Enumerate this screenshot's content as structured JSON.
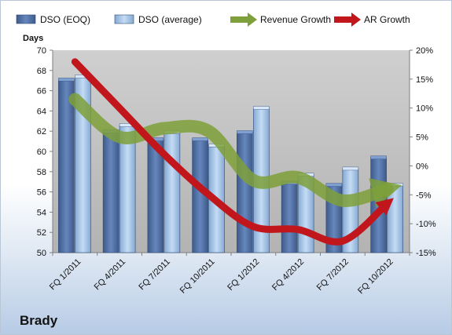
{
  "company_label": "Brady",
  "chart_data": {
    "type": "bar",
    "title": "",
    "ylabel": "Days",
    "ylim": [
      50,
      70
    ],
    "y_ticks": [
      50,
      52,
      54,
      56,
      58,
      60,
      62,
      64,
      66,
      68,
      70
    ],
    "y2lim": [
      -15,
      20
    ],
    "y2_ticks": [
      "-15%",
      "-10%",
      "-5%",
      "0%",
      "5%",
      "10%",
      "15%",
      "20%"
    ],
    "y2_tick_values": [
      -15,
      -10,
      -5,
      0,
      5,
      10,
      15,
      20
    ],
    "categories": [
      "FQ 1/2011",
      "FQ 4/2011",
      "FQ 7/2011",
      "FQ 10/2011",
      "FQ 1/2012",
      "FQ 4/2012",
      "FQ 7/2012",
      "FQ 10/2012"
    ],
    "series": [
      {
        "name": "DSO (EOQ)",
        "type": "bar",
        "axis": "left",
        "color": "#4f6fa3",
        "values": [
          67.1,
          62.0,
          61.2,
          61.2,
          61.9,
          56.9,
          56.7,
          59.4
        ]
      },
      {
        "name": "DSO (average)",
        "type": "bar",
        "axis": "left",
        "color": "#a9c7e8",
        "values": [
          67.4,
          62.6,
          61.9,
          60.6,
          64.3,
          57.7,
          58.3,
          56.7
        ]
      },
      {
        "name": "Revenue Growth",
        "type": "line",
        "axis": "right",
        "color": "#7ea03a",
        "values": [
          11.5,
          5.0,
          6.5,
          6.0,
          -2.5,
          -2.0,
          -6.0,
          -4.0
        ]
      },
      {
        "name": "AR Growth",
        "type": "line",
        "axis": "right",
        "color": "#c0161c",
        "values": [
          18.0,
          10.0,
          2.0,
          -5.0,
          -10.5,
          -11.0,
          -13.0,
          -6.5
        ]
      }
    ],
    "grid": false,
    "legend": "top"
  }
}
